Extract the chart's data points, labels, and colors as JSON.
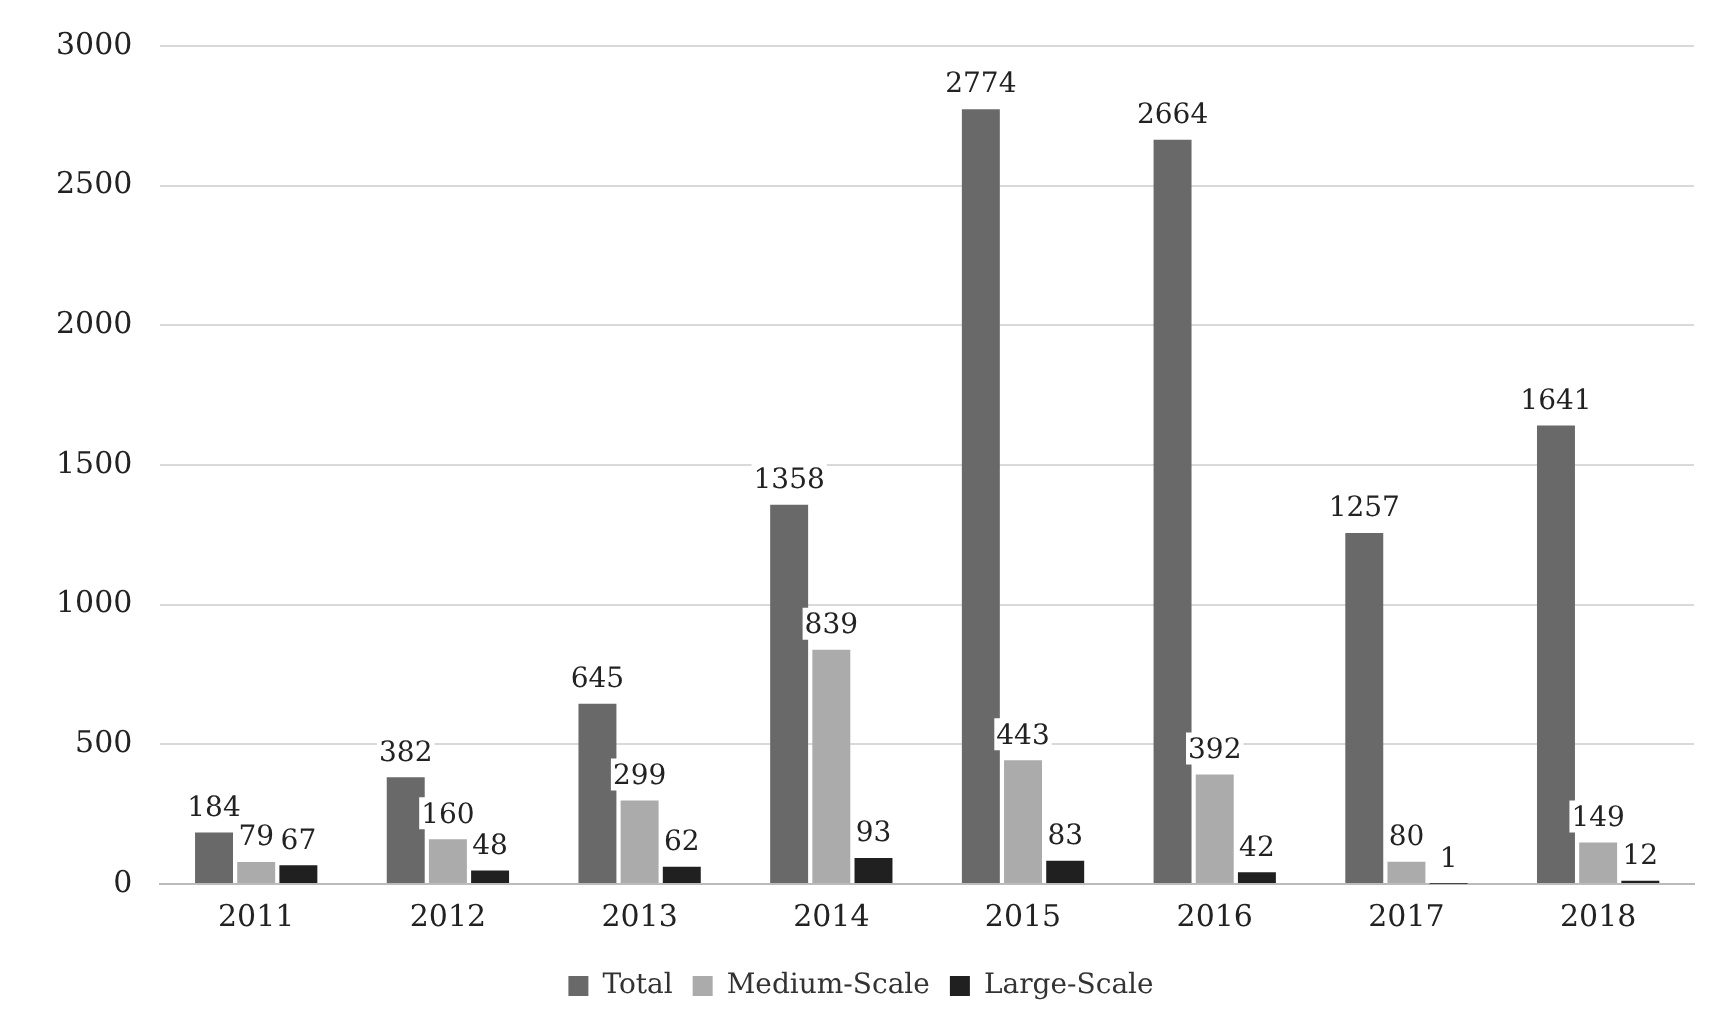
{
  "chart_data": {
    "type": "bar",
    "categories": [
      "2011",
      "2012",
      "2013",
      "2014",
      "2015",
      "2016",
      "2017",
      "2018"
    ],
    "series": [
      {
        "name": "Total",
        "color": "#696969",
        "values": [
          184,
          382,
          645,
          1358,
          2774,
          2664,
          1257,
          1641
        ]
      },
      {
        "name": "Medium-Scale",
        "color": "#ababab",
        "values": [
          79,
          160,
          299,
          839,
          443,
          392,
          80,
          149
        ]
      },
      {
        "name": "Large-Scale",
        "color": "#202020",
        "values": [
          67,
          48,
          62,
          93,
          83,
          42,
          1,
          12
        ]
      }
    ],
    "ylim": [
      0,
      3000
    ],
    "yticks": [
      0,
      500,
      1000,
      1500,
      2000,
      2500,
      3000
    ],
    "grid": "y",
    "legend": "bottom",
    "data_labels": true
  }
}
